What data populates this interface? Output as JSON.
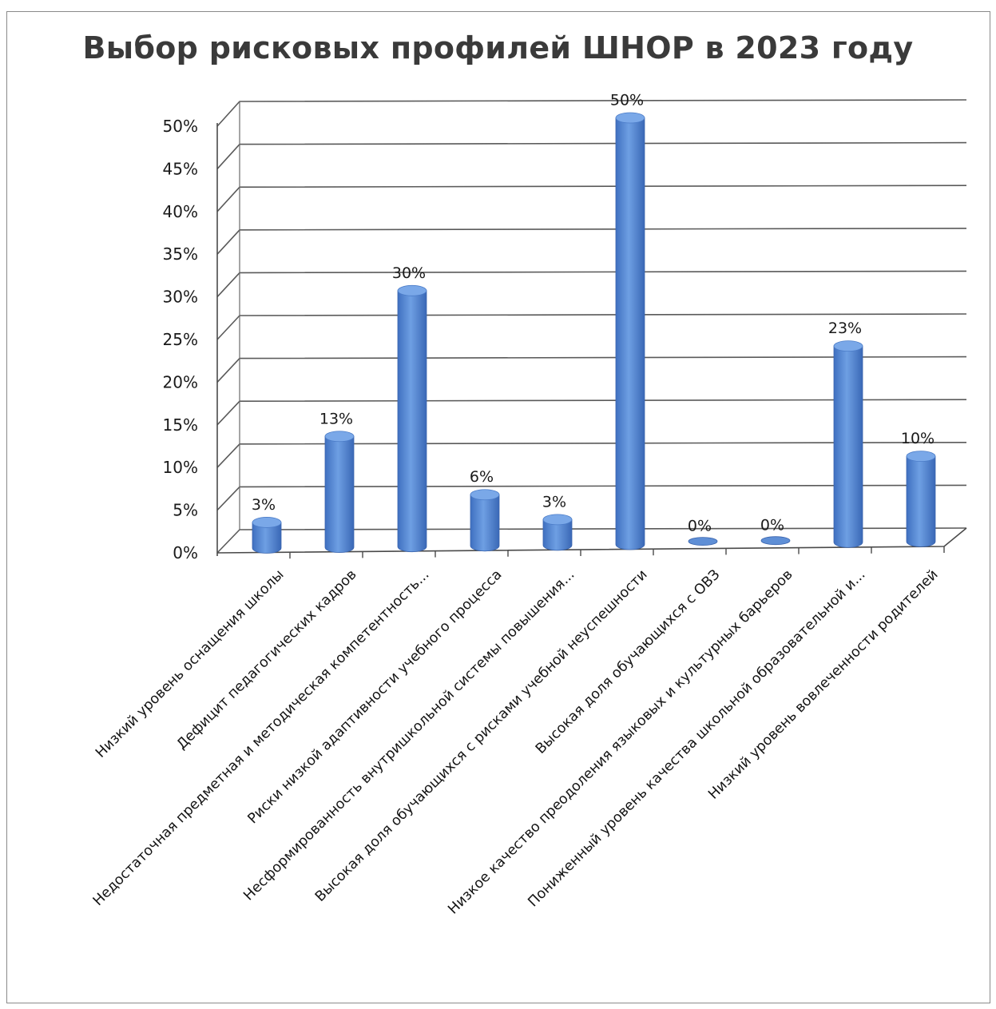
{
  "chart_data": {
    "type": "bar",
    "title": "Выбор рисковых профилей ШНОР в 2023 году",
    "xlabel": "",
    "ylabel": "",
    "ylim": [
      0,
      50
    ],
    "y_ticks": [
      "0%",
      "5%",
      "10%",
      "15%",
      "20%",
      "25%",
      "30%",
      "35%",
      "40%",
      "45%",
      "50%"
    ],
    "grid": true,
    "legend": "none",
    "style": "3d-cylinder",
    "bar_color": "#5b8fd8",
    "categories": [
      "Низкий уровень оснащения школы",
      "Дефицит педагогических кадров",
      "Недостаточная предметная и методическая компетентность...",
      "Риски низкой адаптивности учебного процесса",
      "Несформированность внутришкольной системы повышения...",
      "Высокая доля обучающихся с рисками учебной неуспешности",
      "Высокая доля обучающихся с ОВЗ",
      "Низкое качество преодоления языковых и культурных барьеров",
      "Пониженный уровень качества школьной образовательной и...",
      "Низкий уровень вовлеченности родителей"
    ],
    "values": [
      3,
      13,
      30,
      6,
      3,
      50,
      0,
      0,
      23,
      10
    ],
    "data_labels": [
      "3%",
      "13%",
      "30%",
      "6%",
      "3%",
      "50%",
      "0%",
      "0%",
      "23%",
      "10%"
    ]
  }
}
